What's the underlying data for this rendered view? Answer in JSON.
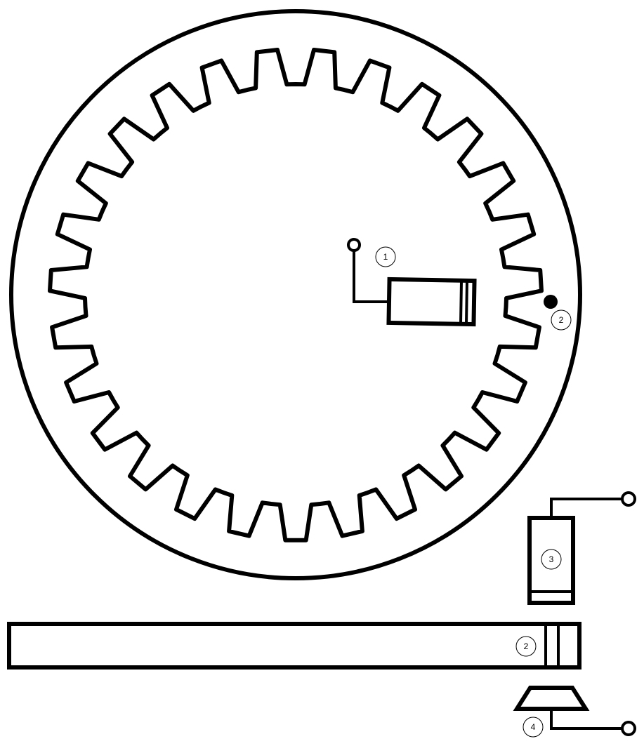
{
  "diagram": {
    "gear_teeth": 27,
    "colors": {
      "stroke": "#000000",
      "background": "#ffffff",
      "marker_fill": "#000000"
    },
    "labels": {
      "label_1": "1",
      "label_2_rim": "2",
      "label_3": "3",
      "label_2_bar": "2",
      "label_4": "4"
    }
  }
}
